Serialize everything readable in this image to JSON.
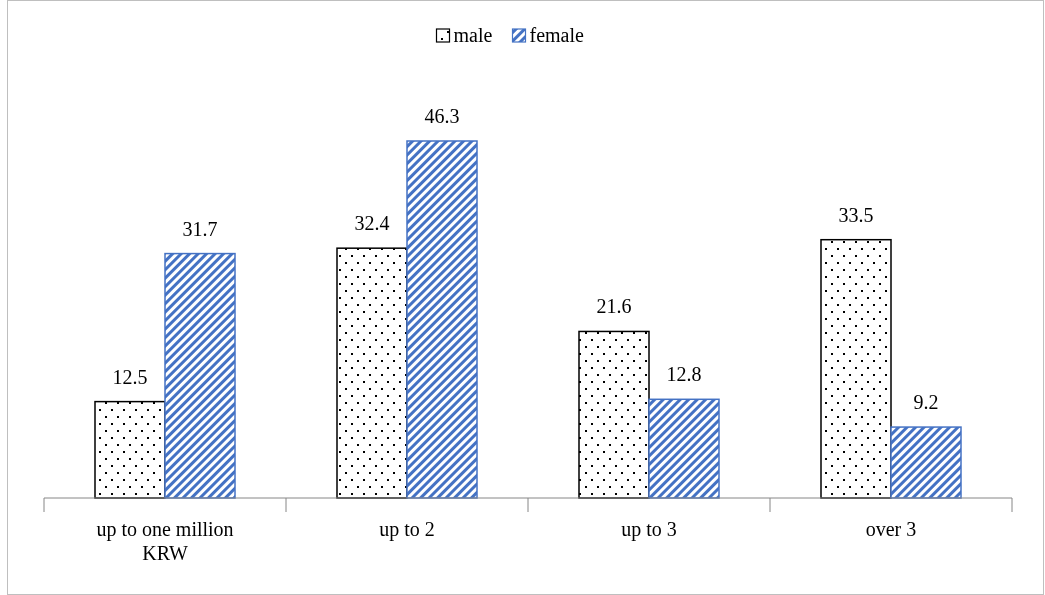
{
  "chart_data": {
    "type": "bar",
    "categories": [
      "up to one million KRW",
      "up to 2",
      "up to 3",
      "over 3"
    ],
    "series": [
      {
        "name": "male",
        "color": "#000000",
        "values": [
          12.5,
          32.4,
          21.6,
          33.5
        ]
      },
      {
        "name": "female",
        "color": "#4472c4",
        "values": [
          31.7,
          46.3,
          12.8,
          9.2
        ]
      }
    ],
    "tick_labels": "x",
    "data_labels": true,
    "legend": "top"
  }
}
